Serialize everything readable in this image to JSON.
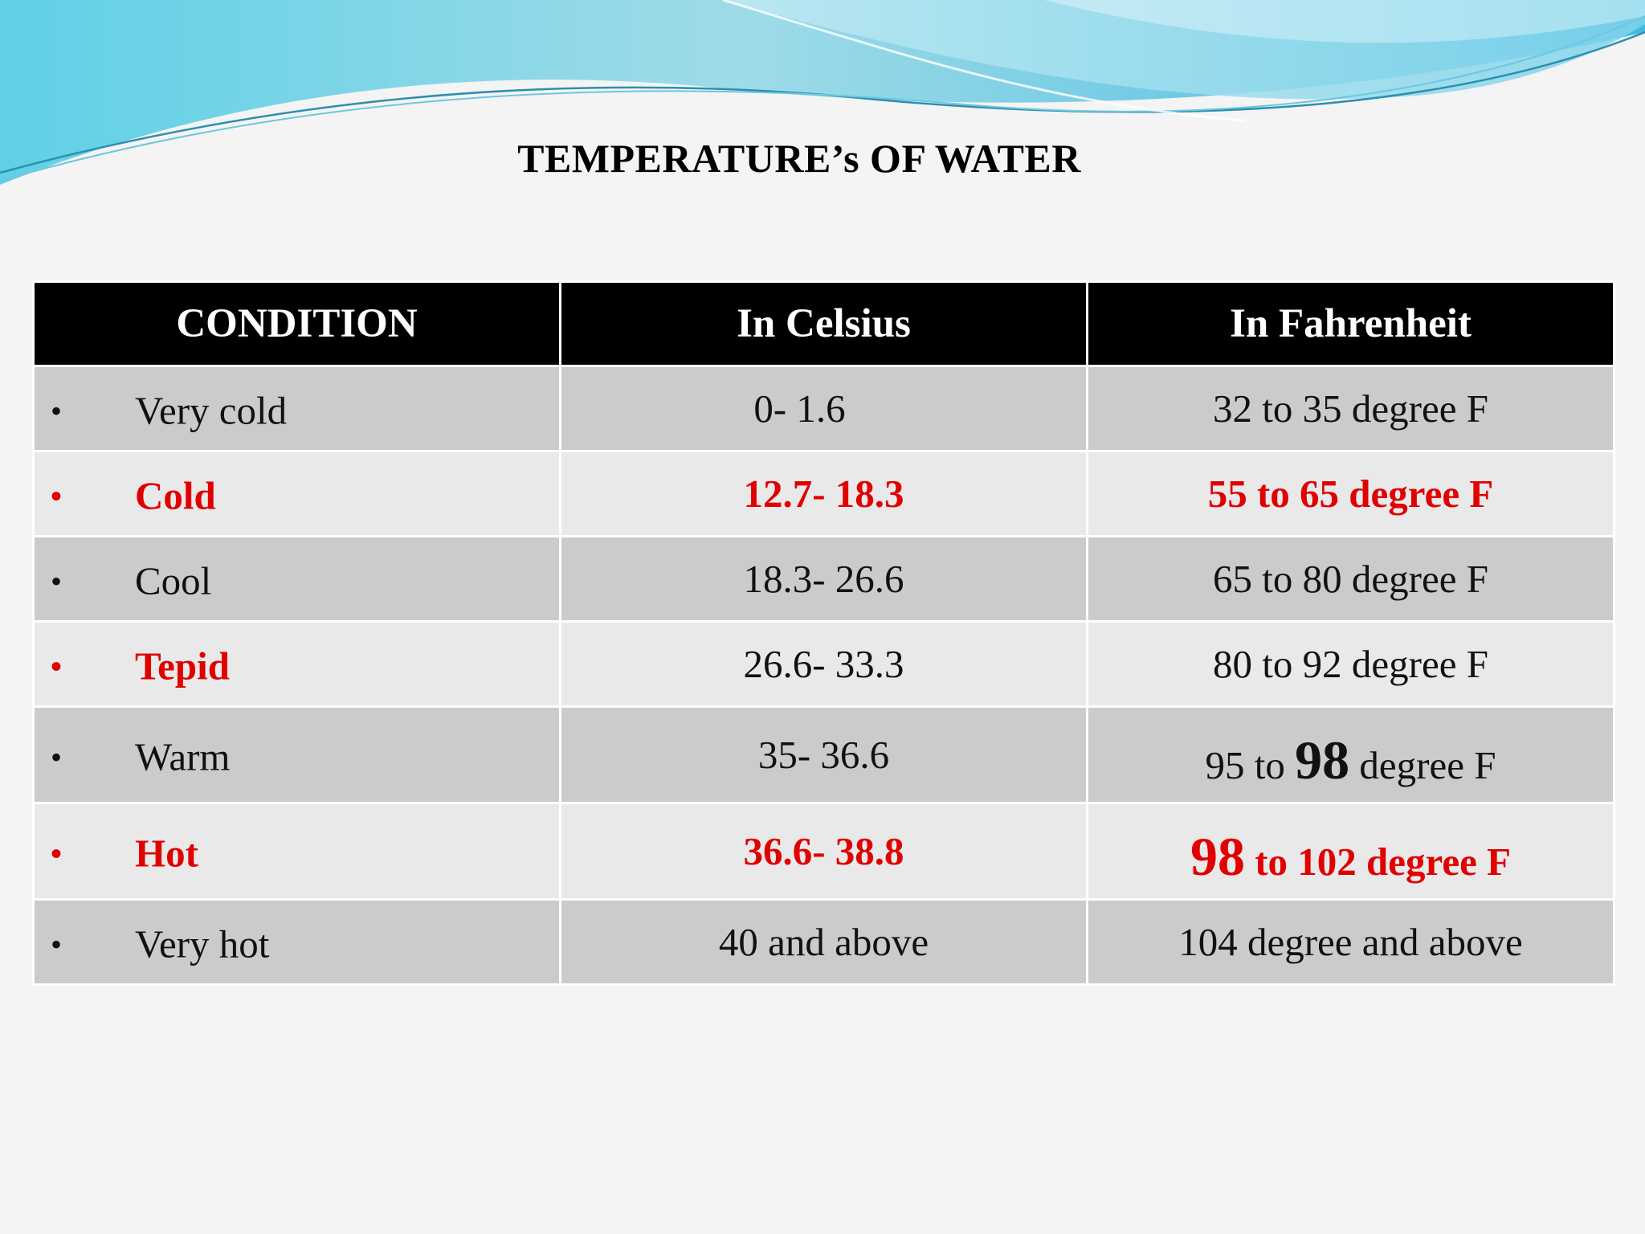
{
  "title": "TEMPERATURE’s OF WATER",
  "table": {
    "headers": [
      "CONDITION",
      "In Celsius",
      "In Fahrenheit"
    ],
    "bullet": "•",
    "rows": [
      {
        "condition": "Very cold",
        "celsius": "0- 1.6",
        "fahrenheit": "32 to 35 degree F",
        "highlight": false
      },
      {
        "condition": "Cold",
        "celsius": "12.7- 18.3",
        "fahrenheit": "55 to 65 degree F",
        "highlight": true
      },
      {
        "condition": "Cool",
        "celsius": "18.3- 26.6",
        "fahrenheit": "65 to 80 degree F",
        "highlight": false
      },
      {
        "condition": "Tepid",
        "celsius": "26.6- 33.3",
        "fahrenheit": "80 to 92 degree F",
        "highlight": false,
        "condition_highlight": true
      },
      {
        "condition": "Warm",
        "celsius": "35- 36.6",
        "fahrenheit_parts": [
          "95 to ",
          "98",
          " degree F"
        ],
        "highlight": false
      },
      {
        "condition": "Hot",
        "celsius": "36.6- 38.8",
        "fahrenheit_parts": [
          "98",
          " to 102 degree F"
        ],
        "highlight": true
      },
      {
        "condition": "Very hot",
        "celsius": "40 and above",
        "fahrenheit": "104 degree and above",
        "highlight": false
      }
    ]
  },
  "colors": {
    "highlight_red": "#e10000",
    "header_bg": "#000000",
    "row_dark": "#cbcacc",
    "row_light": "#e9e9ea"
  }
}
